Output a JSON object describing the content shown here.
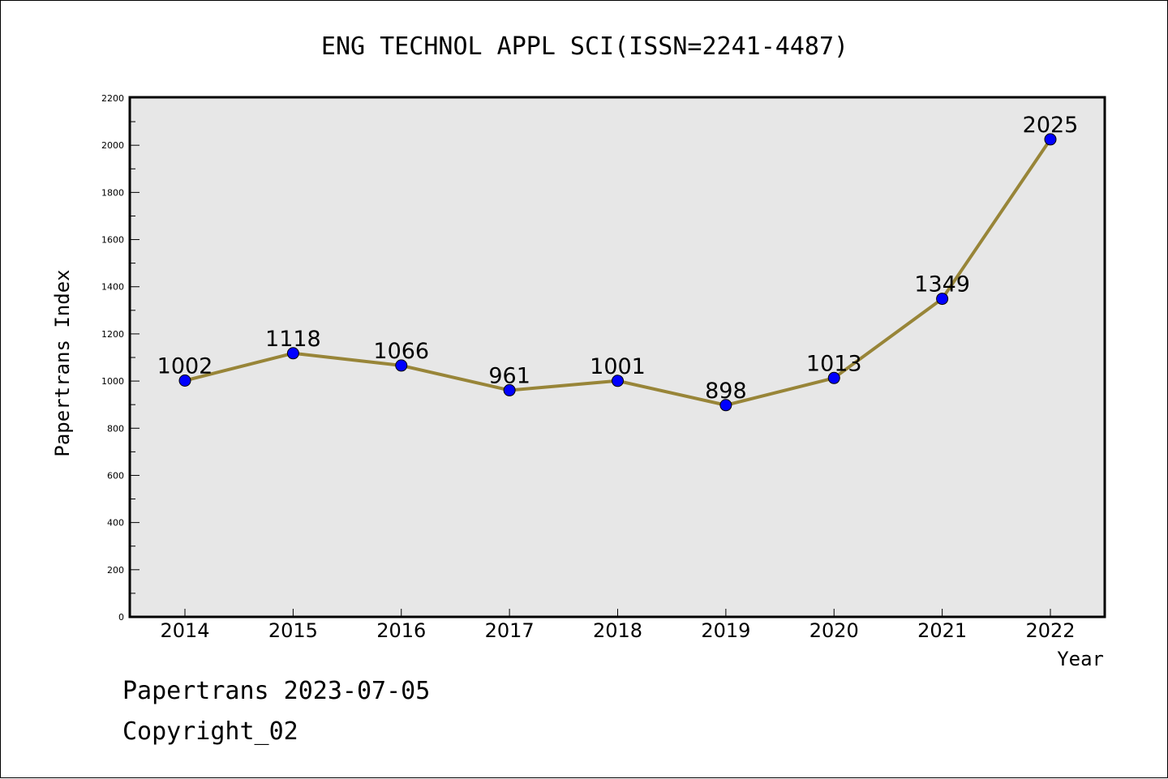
{
  "chart_data": {
    "type": "line",
    "title": "ENG TECHNOL APPL SCI(ISSN=2241-4487)",
    "xlabel": "Year",
    "ylabel": "Papertrans Index",
    "categories": [
      "2014",
      "2015",
      "2016",
      "2017",
      "2018",
      "2019",
      "2020",
      "2021",
      "2022"
    ],
    "series": [
      {
        "values": [
          1002,
          1118,
          1066,
          961,
          1001,
          898,
          1013,
          1349,
          2025
        ],
        "line_color": "#988538",
        "marker_color": "#0000ff"
      }
    ],
    "data_labels": [
      "1002",
      "1118",
      "1066",
      "961",
      "1001",
      "898",
      "1013",
      "1349",
      "2025"
    ],
    "ylim": [
      0,
      2200
    ],
    "y_ticks": [
      0,
      200,
      400,
      600,
      800,
      1000,
      1200,
      1400,
      1600,
      1800,
      2000,
      2200
    ],
    "y_tick_labels": [
      "0",
      "200",
      "400",
      "600",
      "800",
      "1000",
      "1200",
      "1400",
      "1600",
      "1800",
      "2000",
      "2200"
    ],
    "plot_background": "#e7e7e7",
    "grid": false,
    "legend": "none"
  },
  "footer": {
    "line1": "Papertrans 2023-07-05",
    "line2": "Copyright_02"
  }
}
